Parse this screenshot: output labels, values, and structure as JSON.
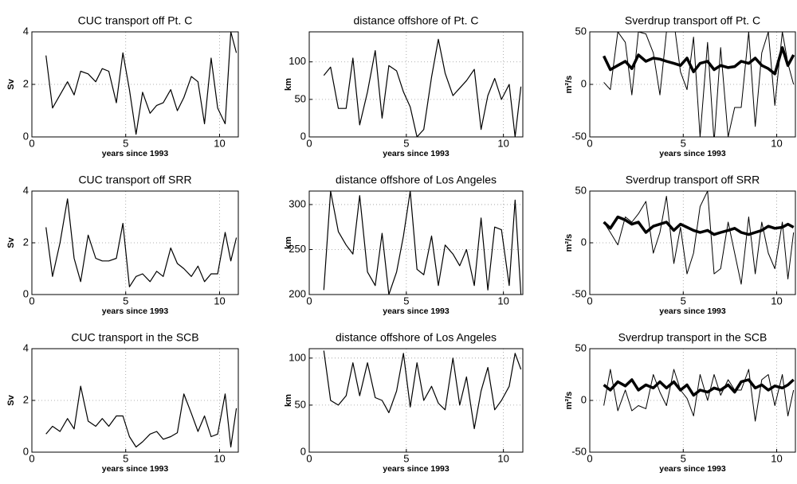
{
  "chart_data": [
    {
      "type": "line",
      "title": "CUC transport off Pt. C",
      "xlabel": "years since 1993",
      "ylabel": "Sv",
      "xlim": [
        0,
        11
      ],
      "xticks": [
        0,
        5,
        10
      ],
      "ylim": [
        0,
        4
      ],
      "yticks": [
        0,
        2,
        4
      ],
      "grid": true,
      "x": [
        0.75,
        1.1,
        1.5,
        1.9,
        2.25,
        2.6,
        3.0,
        3.4,
        3.75,
        4.1,
        4.5,
        4.85,
        5.2,
        5.55,
        5.9,
        6.3,
        6.65,
        7.0,
        7.4,
        7.75,
        8.1,
        8.5,
        8.85,
        9.2,
        9.55,
        9.9,
        10.3,
        10.6,
        10.9
      ],
      "series": [
        {
          "color": "#000000",
          "linewidth": 1.2,
          "values": [
            3.1,
            1.1,
            1.6,
            2.1,
            1.6,
            2.5,
            2.4,
            2.1,
            2.6,
            2.5,
            1.3,
            3.2,
            1.8,
            0.1,
            1.7,
            0.9,
            1.2,
            1.3,
            1.8,
            1.0,
            1.5,
            2.3,
            2.1,
            0.5,
            3.0,
            1.1,
            0.5,
            4.0,
            3.2
          ]
        }
      ]
    },
    {
      "type": "line",
      "title": "distance offshore of Pt. C",
      "xlabel": "years since 1993",
      "ylabel": "km",
      "xlim": [
        0,
        11
      ],
      "xticks": [
        0,
        5,
        10
      ],
      "ylim": [
        0,
        140
      ],
      "yticks": [
        0,
        50,
        100
      ],
      "grid": true,
      "x": [
        0.75,
        1.1,
        1.5,
        1.9,
        2.25,
        2.6,
        3.0,
        3.4,
        3.75,
        4.1,
        4.5,
        4.85,
        5.2,
        5.55,
        5.9,
        6.3,
        6.65,
        7.0,
        7.4,
        7.75,
        8.1,
        8.5,
        8.85,
        9.2,
        9.55,
        9.9,
        10.3,
        10.6,
        10.9
      ],
      "series": [
        {
          "color": "#000000",
          "linewidth": 1.2,
          "values": [
            82,
            93,
            38,
            38,
            105,
            16,
            60,
            115,
            25,
            95,
            88,
            60,
            40,
            0,
            10,
            80,
            130,
            85,
            55,
            65,
            75,
            90,
            10,
            55,
            78,
            50,
            70,
            0,
            67
          ]
        }
      ]
    },
    {
      "type": "line",
      "title": "Sverdrup transport off Pt. C",
      "xlabel": "years since 1993",
      "ylabel": "m²/s",
      "xlim": [
        0,
        11
      ],
      "xticks": [
        0,
        5,
        10
      ],
      "ylim": [
        -50,
        50
      ],
      "yticks": [
        -50,
        0,
        50
      ],
      "grid": true,
      "x": [
        0.75,
        1.1,
        1.5,
        1.9,
        2.25,
        2.6,
        3.0,
        3.4,
        3.75,
        4.1,
        4.5,
        4.85,
        5.2,
        5.55,
        5.9,
        6.3,
        6.65,
        7.0,
        7.4,
        7.75,
        8.1,
        8.5,
        8.85,
        9.2,
        9.55,
        9.9,
        10.3,
        10.6,
        10.9
      ],
      "series": [
        {
          "color": "#000000",
          "linewidth": 1,
          "values": [
            2,
            -5,
            50,
            40,
            -10,
            50,
            48,
            30,
            -10,
            50,
            60,
            12,
            -5,
            45,
            -50,
            40,
            -55,
            35,
            -50,
            -22,
            -22,
            50,
            -40,
            30,
            50,
            -20,
            50,
            20,
            0
          ]
        },
        {
          "color": "#000000",
          "linewidth": 3.5,
          "values": [
            27,
            14,
            18,
            22,
            15,
            28,
            22,
            25,
            24,
            22,
            20,
            18,
            25,
            12,
            20,
            22,
            14,
            18,
            16,
            17,
            22,
            20,
            25,
            18,
            15,
            10,
            35,
            18,
            28
          ]
        }
      ]
    },
    {
      "type": "line",
      "title": "CUC transport off SRR",
      "xlabel": "years since 1993",
      "ylabel": "Sv",
      "xlim": [
        0,
        11
      ],
      "xticks": [
        0,
        5,
        10
      ],
      "ylim": [
        0,
        4
      ],
      "yticks": [
        0,
        2,
        4
      ],
      "grid": true,
      "x": [
        0.75,
        1.1,
        1.5,
        1.9,
        2.25,
        2.6,
        3.0,
        3.4,
        3.75,
        4.1,
        4.5,
        4.85,
        5.2,
        5.55,
        5.9,
        6.3,
        6.65,
        7.0,
        7.4,
        7.75,
        8.1,
        8.5,
        8.85,
        9.2,
        9.55,
        9.9,
        10.3,
        10.6,
        10.9
      ],
      "series": [
        {
          "color": "#000000",
          "linewidth": 1.2,
          "values": [
            2.6,
            0.7,
            2.0,
            3.7,
            1.4,
            0.5,
            2.3,
            1.4,
            1.3,
            1.3,
            1.4,
            2.75,
            0.3,
            0.7,
            0.8,
            0.5,
            0.9,
            0.7,
            1.8,
            1.2,
            1.0,
            0.7,
            1.1,
            0.5,
            0.8,
            0.8,
            2.4,
            1.3,
            2.2
          ]
        }
      ]
    },
    {
      "type": "line",
      "title": "distance offshore of Los Angeles",
      "xlabel": "years since 1993",
      "ylabel": "km",
      "xlim": [
        0,
        11
      ],
      "xticks": [
        0,
        5,
        10
      ],
      "ylim": [
        200,
        315
      ],
      "yticks": [
        200,
        250,
        300
      ],
      "grid": true,
      "x": [
        0.75,
        1.1,
        1.5,
        1.9,
        2.25,
        2.6,
        3.0,
        3.4,
        3.75,
        4.1,
        4.5,
        4.85,
        5.2,
        5.55,
        5.9,
        6.3,
        6.65,
        7.0,
        7.4,
        7.75,
        8.1,
        8.5,
        8.85,
        9.2,
        9.55,
        9.9,
        10.3,
        10.6,
        10.9
      ],
      "series": [
        {
          "color": "#000000",
          "linewidth": 1.2,
          "values": [
            205,
            315,
            270,
            255,
            245,
            310,
            225,
            210,
            268,
            200,
            225,
            265,
            315,
            228,
            222,
            265,
            210,
            255,
            245,
            232,
            250,
            210,
            285,
            205,
            275,
            272,
            210,
            305,
            200
          ]
        }
      ]
    },
    {
      "type": "line",
      "title": "Sverdrup transport off SRR",
      "xlabel": "years since 1993",
      "ylabel": "m²/s",
      "xlim": [
        0,
        11
      ],
      "xticks": [
        0,
        5,
        10
      ],
      "ylim": [
        -50,
        50
      ],
      "yticks": [
        -50,
        0,
        50
      ],
      "grid": true,
      "x": [
        0.75,
        1.1,
        1.5,
        1.9,
        2.25,
        2.6,
        3.0,
        3.4,
        3.75,
        4.1,
        4.5,
        4.85,
        5.2,
        5.55,
        5.9,
        6.3,
        6.65,
        7.0,
        7.4,
        7.75,
        8.1,
        8.5,
        8.85,
        9.2,
        9.55,
        9.9,
        10.3,
        10.6,
        10.9
      ],
      "series": [
        {
          "color": "#000000",
          "linewidth": 1,
          "values": [
            20,
            10,
            -2,
            25,
            20,
            28,
            40,
            -10,
            10,
            45,
            -20,
            15,
            -30,
            -10,
            35,
            50,
            -30,
            -25,
            20,
            -10,
            -40,
            25,
            -30,
            20,
            -10,
            -25,
            20,
            -35,
            10
          ]
        },
        {
          "color": "#000000",
          "linewidth": 3.5,
          "values": [
            20,
            14,
            25,
            22,
            18,
            20,
            10,
            16,
            18,
            20,
            12,
            18,
            15,
            12,
            10,
            12,
            8,
            10,
            12,
            14,
            10,
            8,
            10,
            12,
            16,
            14,
            15,
            18,
            15
          ]
        }
      ]
    },
    {
      "type": "line",
      "title": "CUC transport in the SCB",
      "xlabel": "years since 1993",
      "ylabel": "Sv",
      "xlim": [
        0,
        11
      ],
      "xticks": [
        0,
        5,
        10
      ],
      "ylim": [
        0,
        4
      ],
      "yticks": [
        0,
        2,
        4
      ],
      "grid": true,
      "x": [
        0.75,
        1.1,
        1.5,
        1.9,
        2.25,
        2.6,
        3.0,
        3.4,
        3.75,
        4.1,
        4.5,
        4.85,
        5.2,
        5.55,
        5.9,
        6.3,
        6.65,
        7.0,
        7.4,
        7.75,
        8.1,
        8.5,
        8.85,
        9.2,
        9.55,
        9.9,
        10.3,
        10.6,
        10.9
      ],
      "series": [
        {
          "color": "#000000",
          "linewidth": 1.2,
          "values": [
            0.7,
            1.0,
            0.8,
            1.3,
            0.9,
            2.55,
            1.2,
            1.0,
            1.3,
            1.0,
            1.4,
            1.4,
            0.6,
            0.2,
            0.4,
            0.7,
            0.8,
            0.5,
            0.6,
            0.75,
            2.25,
            1.5,
            0.8,
            1.4,
            0.6,
            0.7,
            2.25,
            0.2,
            1.7
          ]
        }
      ]
    },
    {
      "type": "line",
      "title": "distance offshore of Los Angeles",
      "xlabel": "years since 1993",
      "ylabel": "km",
      "xlim": [
        0,
        11
      ],
      "xticks": [
        0,
        5,
        10
      ],
      "ylim": [
        0,
        110
      ],
      "yticks": [
        0,
        50,
        100
      ],
      "grid": true,
      "x": [
        0.75,
        1.1,
        1.5,
        1.9,
        2.25,
        2.6,
        3.0,
        3.4,
        3.75,
        4.1,
        4.5,
        4.85,
        5.2,
        5.55,
        5.9,
        6.3,
        6.65,
        7.0,
        7.4,
        7.75,
        8.1,
        8.5,
        8.85,
        9.2,
        9.55,
        9.9,
        10.3,
        10.6,
        10.9
      ],
      "series": [
        {
          "color": "#000000",
          "linewidth": 1.2,
          "values": [
            108,
            55,
            50,
            60,
            95,
            60,
            95,
            58,
            55,
            42,
            65,
            105,
            48,
            95,
            55,
            70,
            52,
            45,
            100,
            50,
            80,
            25,
            65,
            90,
            45,
            55,
            70,
            105,
            88
          ]
        }
      ]
    },
    {
      "type": "line",
      "title": "Sverdrup transport in the SCB",
      "xlabel": "years since 1993",
      "ylabel": "m²/s",
      "xlim": [
        0,
        11
      ],
      "xticks": [
        0,
        5,
        10
      ],
      "ylim": [
        -50,
        50
      ],
      "yticks": [
        -50,
        0,
        50
      ],
      "grid": true,
      "x": [
        0.75,
        1.1,
        1.5,
        1.9,
        2.25,
        2.6,
        3.0,
        3.4,
        3.75,
        4.1,
        4.5,
        4.85,
        5.2,
        5.55,
        5.9,
        6.3,
        6.65,
        7.0,
        7.4,
        7.75,
        8.1,
        8.5,
        8.85,
        9.2,
        9.55,
        9.9,
        10.3,
        10.6,
        10.9
      ],
      "series": [
        {
          "color": "#000000",
          "linewidth": 1,
          "values": [
            -5,
            30,
            -10,
            10,
            -10,
            -5,
            -8,
            25,
            8,
            -5,
            30,
            10,
            2,
            -15,
            25,
            0,
            25,
            5,
            20,
            10,
            10,
            30,
            -20,
            20,
            25,
            -5,
            25,
            -15,
            10
          ]
        },
        {
          "color": "#000000",
          "linewidth": 3.5,
          "values": [
            15,
            10,
            18,
            14,
            20,
            10,
            15,
            12,
            18,
            12,
            18,
            10,
            15,
            5,
            10,
            8,
            12,
            10,
            15,
            8,
            18,
            20,
            12,
            15,
            10,
            14,
            12,
            15,
            20
          ]
        }
      ]
    }
  ]
}
